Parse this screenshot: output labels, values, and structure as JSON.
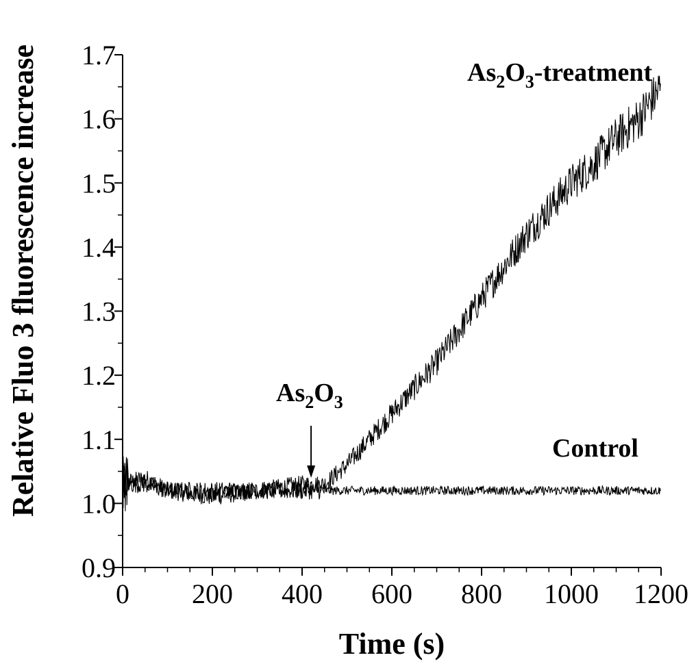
{
  "chart_data": {
    "type": "line",
    "xlabel": "Time (s)",
    "ylabel": "Relative Fluo 3 fluorescence increase",
    "xlim": [
      0,
      1200
    ],
    "ylim": [
      0.9,
      1.7
    ],
    "x_ticks": [
      0,
      200,
      400,
      600,
      800,
      1000,
      1200
    ],
    "x_tick_labels": [
      "0",
      "200",
      "400",
      "600",
      "800",
      "1000",
      "1200"
    ],
    "y_ticks": [
      0.9,
      1.0,
      1.1,
      1.2,
      1.3,
      1.4,
      1.5,
      1.6,
      1.7
    ],
    "y_tick_labels": [
      "0.9",
      "1.0",
      "1.1",
      "1.2",
      "1.3",
      "1.4",
      "1.5",
      "1.6",
      "1.7"
    ],
    "grid": false,
    "series": [
      {
        "name": "As2O3-treatment",
        "x": [
          0,
          50,
          100,
          200,
          300,
          400,
          450,
          500,
          550,
          600,
          650,
          700,
          750,
          800,
          850,
          900,
          950,
          1000,
          1050,
          1100,
          1150,
          1200
        ],
        "y": [
          1.03,
          1.04,
          1.02,
          1.01,
          1.02,
          1.03,
          1.03,
          1.06,
          1.1,
          1.14,
          1.18,
          1.22,
          1.27,
          1.32,
          1.37,
          1.42,
          1.46,
          1.5,
          1.53,
          1.57,
          1.6,
          1.65
        ]
      },
      {
        "name": "Control",
        "x": [
          0,
          50,
          100,
          200,
          300,
          400,
          500,
          600,
          700,
          800,
          900,
          1000,
          1100,
          1200
        ],
        "y": [
          1.03,
          1.03,
          1.02,
          1.02,
          1.02,
          1.02,
          1.02,
          1.02,
          1.02,
          1.02,
          1.02,
          1.02,
          1.02,
          1.02
        ]
      }
    ],
    "annotations": {
      "treatment": {
        "base": "As",
        "sub1": "2",
        "mid": "O",
        "sub2": "3",
        "suffix": "-treatment"
      },
      "injection": {
        "base": "As",
        "sub1": "2",
        "mid": "O",
        "sub2": "3",
        "x": 420
      },
      "control": {
        "text": "Control"
      }
    }
  }
}
